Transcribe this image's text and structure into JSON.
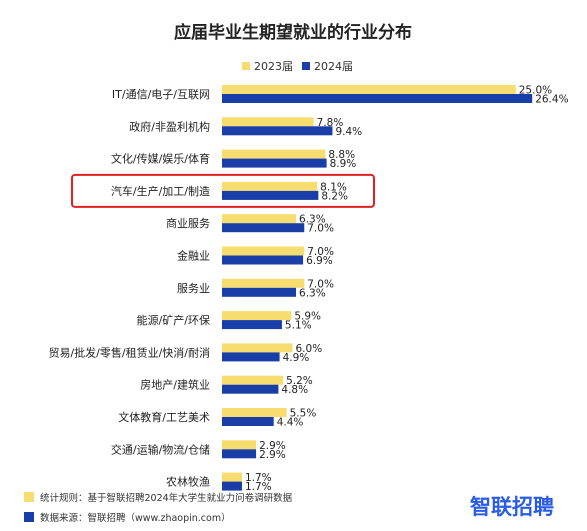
{
  "chart_data": {
    "type": "bar",
    "orientation": "horizontal",
    "title": "应届毕业生期望就业的行业分布",
    "xlabel": "",
    "ylabel": "",
    "categories": [
      "IT/通信/电子/互联网",
      "政府/非盈利机构",
      "文化/传媒/娱乐/体育",
      "汽车/生产/加工/制造",
      "商业服务",
      "金融业",
      "服务业",
      "能源/矿产/环保",
      "贸易/批发/零售/租赁业/快消/耐消",
      "房地产/建筑业",
      "文体教育/工艺美术",
      "交通/运输/物流/仓储",
      "农林牧渔"
    ],
    "series": [
      {
        "name": "2023届",
        "color": "#f7dc6f",
        "values": [
          25.0,
          7.8,
          8.8,
          8.1,
          6.3,
          7.0,
          7.0,
          5.9,
          6.0,
          5.2,
          5.5,
          2.9,
          1.7
        ],
        "labels": [
          "25.0%",
          "7.8%",
          "8.8%",
          "8.1%",
          "6.3%",
          "7.0%",
          "7.0%",
          "5.9%",
          "6.0%",
          "5.2%",
          "5.5%",
          "2.9%",
          "1.7%"
        ]
      },
      {
        "name": "2024届",
        "color": "#1a3ea8",
        "values": [
          26.4,
          9.4,
          8.9,
          8.2,
          7.0,
          6.9,
          6.3,
          5.1,
          4.9,
          4.8,
          4.4,
          2.9,
          1.7
        ],
        "labels": [
          "26.4%",
          "9.4%",
          "8.9%",
          "8.2%",
          "7.0%",
          "6.9%",
          "6.3%",
          "5.1%",
          "4.9%",
          "4.8%",
          "4.4%",
          "2.9%",
          "1.7%"
        ]
      }
    ],
    "highlighted_category": "汽车/生产/加工/制造",
    "highlight_color": "#e02020",
    "legend_position": "top-right",
    "grid": false
  },
  "footnotes": [
    {
      "text": "统计规则：基于智联招聘2024年大学生就业力问卷调研数据",
      "color": "#f7dc6f"
    },
    {
      "text": "数据来源：智联招聘（www.zhaopin.com）",
      "color": "#1a3ea8"
    }
  ],
  "logo": {
    "text": "智联招聘",
    "color": "#2b5ce6"
  }
}
